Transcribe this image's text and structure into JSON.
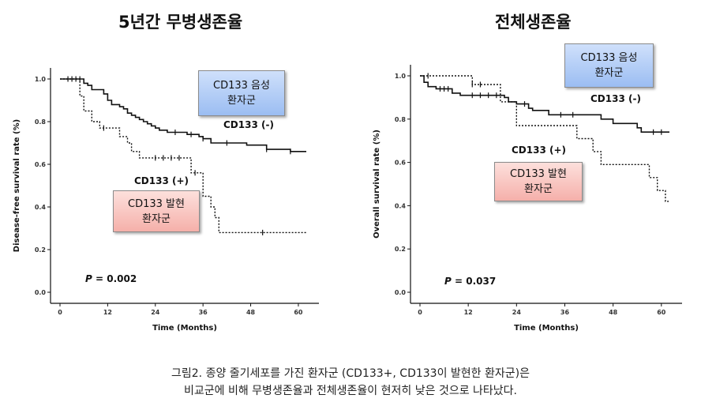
{
  "panels": {
    "left": {
      "title": "5년간 무병생존율",
      "neg_box": {
        "line1": "CD133 음성",
        "line2": "환자군"
      },
      "pos_box": {
        "line1": "CD133 발현",
        "line2": "환자군"
      }
    },
    "right": {
      "title": "전체생존율",
      "neg_box": {
        "line1": "CD133 음성",
        "line2": "환자군"
      },
      "pos_box": {
        "line1": "CD133 발현",
        "line2": "환자군"
      }
    }
  },
  "caption": {
    "line1": "그림2. 종양 줄기세포를 가진 환자군 (CD133+, CD133이 발현한 환자군)은",
    "line2": "비교군에 비해 무병생존율과 전체생존율이 현저히 낮은 것으로 나타났다."
  },
  "chart_data": [
    {
      "type": "line",
      "step": true,
      "xlabel": "Time (Months)",
      "ylabel": "Disease-free survival rate (%)",
      "xticks": [
        "0",
        "12",
        "24",
        "36",
        "48",
        "60"
      ],
      "yticks": [
        "0.0",
        "0.2",
        "0.4",
        "0.6",
        "0.8",
        "1.0"
      ],
      "xlim": [
        0,
        62
      ],
      "ylim": [
        0,
        1.0
      ],
      "pvalue_label": "P",
      "pvalue_value": "= 0.002",
      "series": [
        {
          "name": "CD133 (-)",
          "style": "solid",
          "points": [
            [
              0,
              1.0
            ],
            [
              6,
              1.0
            ],
            [
              6,
              0.98
            ],
            [
              7,
              0.97
            ],
            [
              8,
              0.95
            ],
            [
              11,
              0.93
            ],
            [
              12,
              0.9
            ],
            [
              13,
              0.88
            ],
            [
              15,
              0.87
            ],
            [
              16,
              0.86
            ],
            [
              17,
              0.84
            ],
            [
              18,
              0.83
            ],
            [
              19,
              0.82
            ],
            [
              20,
              0.81
            ],
            [
              21,
              0.8
            ],
            [
              22,
              0.79
            ],
            [
              23,
              0.78
            ],
            [
              24,
              0.77
            ],
            [
              25,
              0.76
            ],
            [
              27,
              0.75
            ],
            [
              32,
              0.74
            ],
            [
              35,
              0.73
            ],
            [
              36,
              0.72
            ],
            [
              38,
              0.7
            ],
            [
              47,
              0.69
            ],
            [
              52,
              0.67
            ],
            [
              58,
              0.66
            ],
            [
              62,
              0.66
            ]
          ],
          "censored": [
            [
              2,
              1.0
            ],
            [
              3,
              1.0
            ],
            [
              4,
              1.0
            ],
            [
              5,
              1.0
            ],
            [
              29,
              0.75
            ],
            [
              33,
              0.74
            ],
            [
              36,
              0.72
            ],
            [
              42,
              0.7
            ],
            [
              52,
              0.67
            ],
            [
              58,
              0.66
            ]
          ]
        },
        {
          "name": "CD133 (+)",
          "style": "dotted",
          "points": [
            [
              0,
              1.0
            ],
            [
              5,
              1.0
            ],
            [
              5,
              0.92
            ],
            [
              6,
              0.85
            ],
            [
              8,
              0.8
            ],
            [
              10,
              0.77
            ],
            [
              15,
              0.77
            ],
            [
              15,
              0.73
            ],
            [
              17,
              0.7
            ],
            [
              18,
              0.66
            ],
            [
              20,
              0.63
            ],
            [
              33,
              0.63
            ],
            [
              33,
              0.56
            ],
            [
              36,
              0.56
            ],
            [
              36,
              0.45
            ],
            [
              38,
              0.4
            ],
            [
              39,
              0.35
            ],
            [
              40,
              0.28
            ],
            [
              62,
              0.28
            ]
          ],
          "censored": [
            [
              11,
              0.77
            ],
            [
              24,
              0.63
            ],
            [
              26,
              0.63
            ],
            [
              28,
              0.63
            ],
            [
              30,
              0.63
            ],
            [
              34,
              0.56
            ],
            [
              51,
              0.28
            ]
          ]
        }
      ]
    },
    {
      "type": "line",
      "step": true,
      "xlabel": "Time (Months)",
      "ylabel": "Overall survival rate (%)",
      "xticks": [
        "0",
        "12",
        "24",
        "36",
        "48",
        "60"
      ],
      "yticks": [
        "0.0",
        "0.2",
        "0.4",
        "0.6",
        "0.8",
        "1.0"
      ],
      "xlim": [
        0,
        62
      ],
      "ylim": [
        0,
        1.0
      ],
      "pvalue_label": "P",
      "pvalue_value": "= 0.037",
      "series": [
        {
          "name": "CD133 (-)",
          "style": "solid",
          "points": [
            [
              0,
              1.0
            ],
            [
              1,
              0.97
            ],
            [
              2,
              0.95
            ],
            [
              4,
              0.94
            ],
            [
              8,
              0.92
            ],
            [
              10,
              0.91
            ],
            [
              21,
              0.9
            ],
            [
              22,
              0.88
            ],
            [
              24,
              0.87
            ],
            [
              27,
              0.85
            ],
            [
              28,
              0.84
            ],
            [
              32,
              0.82
            ],
            [
              45,
              0.8
            ],
            [
              48,
              0.78
            ],
            [
              54,
              0.76
            ],
            [
              55,
              0.74
            ],
            [
              62,
              0.74
            ]
          ],
          "censored": [
            [
              5,
              0.94
            ],
            [
              6,
              0.94
            ],
            [
              7,
              0.94
            ],
            [
              13,
              0.91
            ],
            [
              15,
              0.91
            ],
            [
              17,
              0.91
            ],
            [
              19,
              0.91
            ],
            [
              26,
              0.87
            ],
            [
              35,
              0.82
            ],
            [
              38,
              0.82
            ],
            [
              58,
              0.74
            ],
            [
              60,
              0.74
            ]
          ]
        },
        {
          "name": "CD133 (+)",
          "style": "dotted",
          "points": [
            [
              0,
              1.0
            ],
            [
              13,
              1.0
            ],
            [
              13,
              0.96
            ],
            [
              20,
              0.96
            ],
            [
              20,
              0.88
            ],
            [
              24,
              0.77
            ],
            [
              39,
              0.77
            ],
            [
              39,
              0.71
            ],
            [
              43,
              0.65
            ],
            [
              45,
              0.59
            ],
            [
              57,
              0.59
            ],
            [
              57,
              0.53
            ],
            [
              59,
              0.47
            ],
            [
              61,
              0.42
            ],
            [
              62,
              0.42
            ]
          ],
          "censored": [
            [
              2,
              1.0
            ],
            [
              13,
              0.96
            ],
            [
              15,
              0.96
            ]
          ]
        }
      ]
    }
  ]
}
